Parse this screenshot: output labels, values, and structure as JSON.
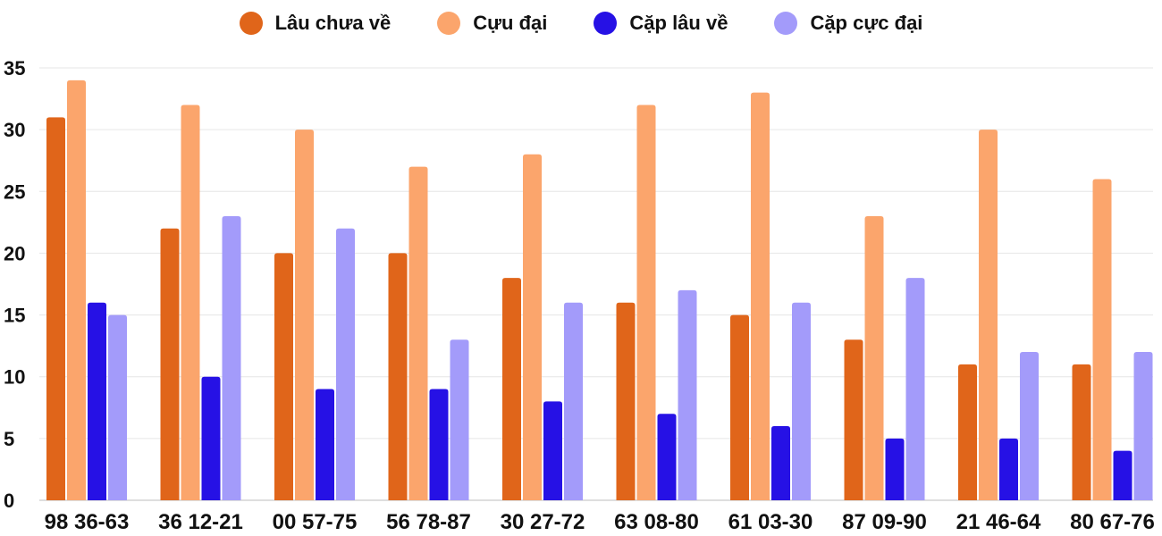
{
  "chart_data": {
    "type": "bar",
    "title": "",
    "xlabel": "",
    "ylabel": "",
    "ylim": [
      0,
      35
    ],
    "yticks": [
      0,
      5,
      10,
      15,
      20,
      25,
      30,
      35
    ],
    "grid": true,
    "legend_position": "top-center",
    "categories": [
      "98 36-63",
      "36 12-21",
      "00 57-75",
      "56 78-87",
      "30 27-72",
      "63 08-80",
      "61 03-30",
      "87 09-90",
      "21 46-64",
      "80 67-76"
    ],
    "series": [
      {
        "name": "Lâu chưa về",
        "color": "#E0651A",
        "values": [
          31,
          22,
          20,
          20,
          18,
          16,
          15,
          13,
          11,
          11
        ]
      },
      {
        "name": "Cựu đại",
        "color": "#FBA56C",
        "values": [
          34,
          32,
          30,
          27,
          28,
          32,
          33,
          23,
          30,
          26
        ]
      },
      {
        "name": "Cặp lâu về",
        "color": "#2611E5",
        "values": [
          16,
          10,
          9,
          9,
          8,
          7,
          6,
          5,
          5,
          4
        ]
      },
      {
        "name": "Cặp cực đại",
        "color": "#A39BFA",
        "values": [
          15,
          23,
          22,
          13,
          16,
          17,
          16,
          18,
          12,
          12
        ]
      }
    ]
  }
}
